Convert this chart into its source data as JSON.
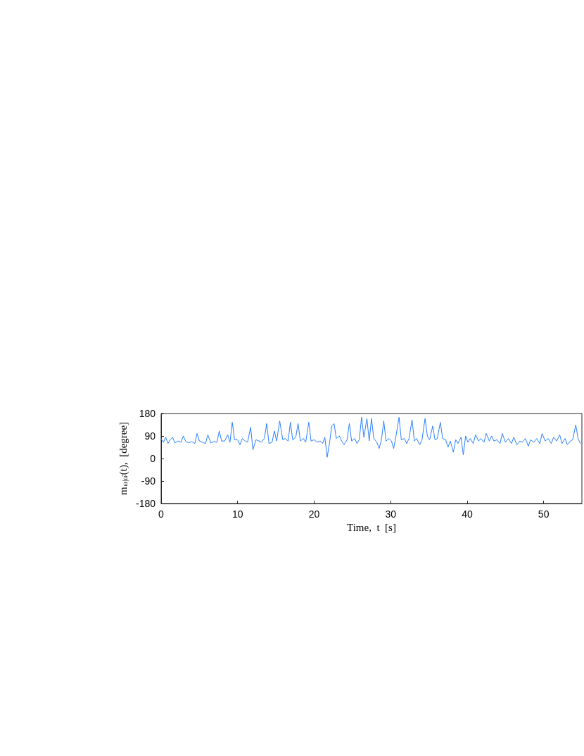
{
  "chart_data": {
    "type": "line",
    "xlabel": "Time,  t  [s]",
    "ylabel": "m$_{ω|ω̄}$(t),  [degree]",
    "xlim": [
      0,
      55
    ],
    "xticks": [
      0,
      10,
      20,
      30,
      40,
      50
    ],
    "ylim": [
      -180,
      180
    ],
    "yticks": [
      -180,
      -90,
      0,
      90,
      180
    ],
    "x": [
      0,
      0.3,
      0.6,
      0.9,
      1.2,
      1.5,
      1.8,
      2.2,
      2.6,
      2.9,
      3.2,
      3.6,
      4.0,
      4.4,
      4.7,
      5.0,
      5.4,
      5.8,
      6.1,
      6.5,
      6.9,
      7.3,
      7.6,
      7.9,
      8.3,
      8.7,
      9.0,
      9.3,
      9.6,
      10.0,
      10.3,
      10.6,
      11.0,
      11.3,
      11.7,
      12.0,
      12.4,
      12.8,
      13.1,
      13.5,
      13.8,
      14.1,
      14.5,
      14.8,
      15.1,
      15.5,
      15.9,
      16.2,
      16.6,
      16.9,
      17.2,
      17.6,
      17.9,
      18.2,
      18.6,
      18.9,
      19.3,
      19.6,
      20.0,
      20.4,
      20.8,
      21.1,
      21.4,
      21.7,
      22.0,
      22.3,
      22.6,
      22.9,
      23.3,
      23.6,
      23.9,
      24.3,
      24.6,
      24.9,
      25.3,
      25.6,
      25.9,
      26.2,
      26.5,
      26.9,
      27.2,
      27.5,
      27.8,
      28.2,
      28.5,
      28.8,
      29.1,
      29.4,
      29.8,
      30.1,
      30.4,
      30.7,
      31.1,
      31.4,
      31.8,
      32.1,
      32.4,
      32.8,
      33.1,
      33.4,
      33.8,
      34.1,
      34.5,
      34.8,
      35.1,
      35.5,
      35.8,
      36.1,
      36.5,
      36.8,
      37.2,
      37.5,
      37.8,
      38.2,
      38.5,
      38.8,
      39.2,
      39.5,
      39.8,
      40.1,
      40.4,
      40.8,
      41.1,
      41.5,
      41.8,
      42.2,
      42.5,
      42.9,
      43.2,
      43.5,
      43.9,
      44.3,
      44.6,
      45.0,
      45.4,
      45.8,
      46.1,
      46.5,
      46.9,
      47.2,
      47.6,
      48.0,
      48.3,
      48.7,
      49.1,
      49.5,
      49.8,
      50.2,
      50.6,
      51.0,
      51.3,
      51.7,
      52.1,
      52.4,
      52.8,
      53.1,
      53.5,
      53.8,
      54.2,
      54.5,
      54.8
    ],
    "series": [
      {
        "color": "#2a7fff",
        "values": [
          80,
          65,
          85,
          60,
          75,
          85,
          62,
          70,
          65,
          90,
          70,
          62,
          68,
          60,
          100,
          70,
          65,
          60,
          95,
          62,
          68,
          65,
          110,
          70,
          70,
          95,
          65,
          145,
          75,
          75,
          55,
          80,
          70,
          65,
          125,
          35,
          75,
          70,
          65,
          80,
          140,
          60,
          65,
          110,
          70,
          150,
          75,
          80,
          70,
          145,
          75,
          85,
          140,
          70,
          80,
          65,
          145,
          70,
          75,
          65,
          70,
          60,
          85,
          5,
          60,
          130,
          140,
          80,
          90,
          70,
          55,
          75,
          140,
          70,
          80,
          60,
          75,
          165,
          85,
          160,
          70,
          160,
          80,
          65,
          40,
          75,
          150,
          70,
          80,
          70,
          40,
          90,
          165,
          75,
          80,
          60,
          80,
          155,
          70,
          80,
          55,
          75,
          160,
          90,
          75,
          130,
          75,
          80,
          145,
          80,
          75,
          45,
          70,
          25,
          75,
          60,
          85,
          15,
          90,
          65,
          80,
          60,
          95,
          70,
          80,
          65,
          100,
          70,
          90,
          70,
          75,
          60,
          100,
          65,
          80,
          60,
          85,
          55,
          70,
          65,
          80,
          50,
          75,
          65,
          80,
          60,
          100,
          70,
          80,
          60,
          85,
          70,
          95,
          60,
          80,
          55,
          70,
          75,
          135,
          80,
          60
        ]
      }
    ]
  }
}
